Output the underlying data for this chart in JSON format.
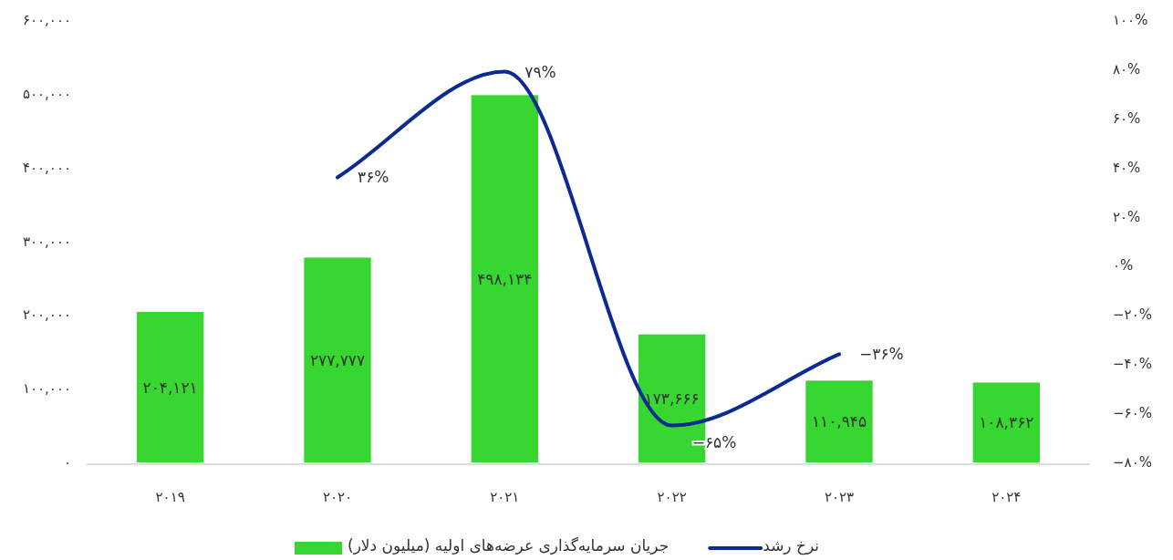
{
  "chart_data": {
    "type": "bar",
    "categories": [
      "۲۰۱۹",
      "۲۰۲۰",
      "۲۰۲۱",
      "۲۰۲۲",
      "۲۰۲۳",
      "۲۰۲۴"
    ],
    "series": [
      {
        "name": "جریان سرمایه‌گذاری عرضه‌های اولیه (میلیون دلار)",
        "color": "#37d630",
        "values": [
          204121,
          277777,
          498134,
          173666,
          110945,
          108362
        ],
        "value_labels": [
          "۲۰۴,۱۲۱",
          "۲۷۷,۷۷۷",
          "۴۹۸,۱۳۴",
          "۱۷۳,۶۶۶",
          "۱۱۰,۹۴۵",
          "۱۰۸,۳۶۲"
        ]
      },
      {
        "name": "نرخ رشد",
        "type": "line",
        "axis": "y2",
        "color": "#0b2a94",
        "values": [
          null,
          36,
          79,
          -65,
          -36,
          null
        ],
        "value_labels": [
          null,
          "۳۶%",
          "۷۹%",
          "−۶۵%",
          "−۳۶%",
          null
        ]
      }
    ],
    "ylim": [
      0,
      600000
    ],
    "yticks": [
      {
        "value": 0,
        "label": "۰"
      },
      {
        "value": 100000,
        "label": "۱۰۰,۰۰۰"
      },
      {
        "value": 200000,
        "label": "۲۰۰,۰۰۰"
      },
      {
        "value": 300000,
        "label": "۳۰۰,۰۰۰"
      },
      {
        "value": 400000,
        "label": "۴۰۰,۰۰۰"
      },
      {
        "value": 500000,
        "label": "۵۰۰,۰۰۰"
      },
      {
        "value": 600000,
        "label": "۶۰۰,۰۰۰"
      }
    ],
    "y2lim": [
      -80,
      100
    ],
    "y2ticks": [
      {
        "value": -80,
        "label": "−۸۰%"
      },
      {
        "value": -60,
        "label": "−۶۰%"
      },
      {
        "value": -40,
        "label": "−۴۰%"
      },
      {
        "value": -20,
        "label": "−۲۰%"
      },
      {
        "value": 0,
        "label": "۰%"
      },
      {
        "value": 20,
        "label": "۲۰%"
      },
      {
        "value": 40,
        "label": "۴۰%"
      },
      {
        "value": 60,
        "label": "۶۰%"
      },
      {
        "value": 80,
        "label": "۸۰%"
      },
      {
        "value": 100,
        "label": "۱۰۰%"
      }
    ],
    "legend": "bottom"
  }
}
